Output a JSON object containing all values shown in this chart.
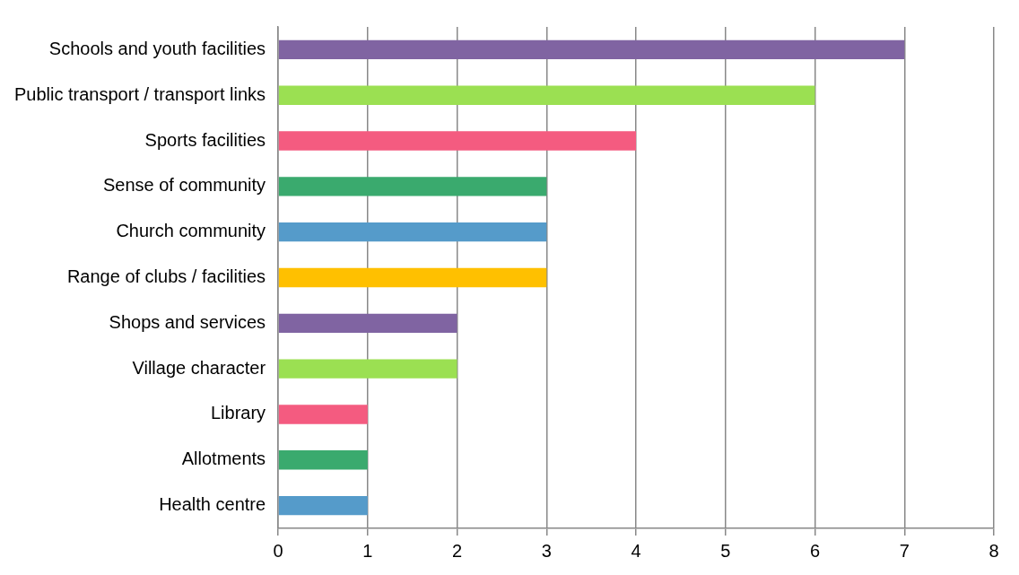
{
  "chart_data": {
    "type": "bar",
    "orientation": "horizontal",
    "categories": [
      "Schools and youth facilities",
      "Public transport / transport links",
      "Sports facilities",
      "Sense of community",
      "Church community",
      "Range of clubs / facilities",
      "Shops and services",
      "Village character",
      "Library",
      "Allotments",
      "Health centre"
    ],
    "values": [
      7,
      6,
      4,
      3,
      3,
      3,
      2,
      2,
      1,
      1,
      1
    ],
    "colors": [
      "#8064a2",
      "#9be052",
      "#f45b80",
      "#3aaa6e",
      "#559bca",
      "#ffc000",
      "#8064a2",
      "#9be052",
      "#f45b80",
      "#3aaa6e",
      "#559bca"
    ],
    "xlim": [
      0,
      8
    ],
    "xticks": [
      0,
      1,
      2,
      3,
      4,
      5,
      6,
      7,
      8
    ],
    "grid": "x",
    "legend": false
  }
}
